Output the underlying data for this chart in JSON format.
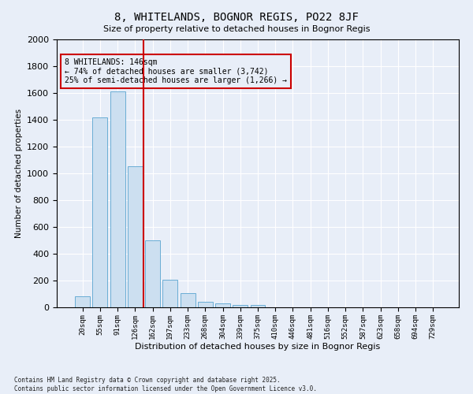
{
  "title": "8, WHITELANDS, BOGNOR REGIS, PO22 8JF",
  "subtitle": "Size of property relative to detached houses in Bognor Regis",
  "xlabel": "Distribution of detached houses by size in Bognor Regis",
  "ylabel": "Number of detached properties",
  "categories": [
    "20sqm",
    "55sqm",
    "91sqm",
    "126sqm",
    "162sqm",
    "197sqm",
    "233sqm",
    "268sqm",
    "304sqm",
    "339sqm",
    "375sqm",
    "410sqm",
    "446sqm",
    "481sqm",
    "516sqm",
    "552sqm",
    "587sqm",
    "623sqm",
    "658sqm",
    "694sqm",
    "729sqm"
  ],
  "values": [
    80,
    1420,
    1610,
    1055,
    500,
    205,
    105,
    40,
    27,
    18,
    18,
    0,
    0,
    0,
    0,
    0,
    0,
    0,
    0,
    0,
    0
  ],
  "bar_color": "#ccdff0",
  "bar_edge_color": "#6aadd5",
  "vline_x": 3.5,
  "vline_color": "#cc0000",
  "annotation_title": "8 WHITELANDS: 146sqm",
  "annotation_line1": "← 74% of detached houses are smaller (3,742)",
  "annotation_line2": "25% of semi-detached houses are larger (1,266) →",
  "annotation_box_color": "#cc0000",
  "ylim": [
    0,
    2000
  ],
  "yticks": [
    0,
    200,
    400,
    600,
    800,
    1000,
    1200,
    1400,
    1600,
    1800,
    2000
  ],
  "footer_line1": "Contains HM Land Registry data © Crown copyright and database right 2025.",
  "footer_line2": "Contains public sector information licensed under the Open Government Licence v3.0.",
  "background_color": "#e8eef8"
}
